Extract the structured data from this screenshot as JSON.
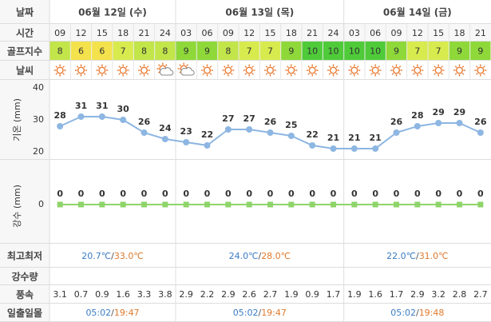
{
  "labels": {
    "date": "날짜",
    "time": "시간",
    "golf": "골프지수",
    "weather": "날씨",
    "minmax": "최고최저",
    "rain": "강수량",
    "wind": "풍속",
    "sun": "일출일몰"
  },
  "dates": [
    "06월 12일 (수)",
    "06월 13일 (목)",
    "06월 14일 (금)"
  ],
  "times": [
    "09",
    "12",
    "15",
    "18",
    "21",
    "24",
    "03",
    "06",
    "09",
    "12",
    "15",
    "18",
    "21",
    "24",
    "03",
    "06",
    "09",
    "12",
    "15",
    "18",
    "21"
  ],
  "golf_index": [
    8,
    6,
    6,
    7,
    8,
    8,
    9,
    9,
    8,
    7,
    7,
    9,
    10,
    10,
    10,
    10,
    9,
    7,
    7,
    9,
    9
  ],
  "golf_colors": {
    "6": "#f4e24c",
    "7": "#d8eb4e",
    "8": "#c2e54a",
    "9": "#8fd83a",
    "10": "#4fcb3a"
  },
  "min_max": [
    {
      "low": "20.7℃",
      "high": "33.0℃"
    },
    {
      "low": "24.0℃",
      "high": "28.0℃"
    },
    {
      "low": "22.0℃",
      "high": "31.0℃"
    }
  ],
  "separator": "/",
  "low_color": "#3b7cc4",
  "high_color": "#e07a2e",
  "wind": [
    3.1,
    0.7,
    0.9,
    1.6,
    3.3,
    3.8,
    2.9,
    2.2,
    2.9,
    2.6,
    2.7,
    1.9,
    0.9,
    1.7,
    1.9,
    1.6,
    1.7,
    2.9,
    3.2,
    2.8,
    2.7
  ],
  "sun": [
    {
      "rise": "05:02",
      "set": "19:47"
    },
    {
      "rise": "05:02",
      "set": "19:47"
    },
    {
      "rise": "05:02",
      "set": "19:48"
    }
  ],
  "chart_data": [
    {
      "type": "line",
      "y_label": "기온 (mm)",
      "values": [
        28,
        31,
        31,
        30,
        26,
        24,
        23,
        22,
        27,
        27,
        26,
        25,
        22,
        21,
        21,
        21,
        26,
        28,
        29,
        29,
        26
      ],
      "color": "#8db6e2",
      "ylim": [
        20,
        40
      ],
      "yticks": [
        20,
        30,
        40
      ],
      "grid": false
    },
    {
      "type": "line",
      "marker": "square",
      "y_label": "강수 (mm)",
      "values": [
        0,
        0,
        0,
        0,
        0,
        0,
        0,
        0,
        0,
        0,
        0,
        0,
        0,
        0,
        0,
        0,
        0,
        0,
        0,
        0,
        0
      ],
      "color": "#8ed46a",
      "ylim": [
        0,
        10
      ],
      "yticks": [
        0
      ],
      "grid": false
    }
  ]
}
